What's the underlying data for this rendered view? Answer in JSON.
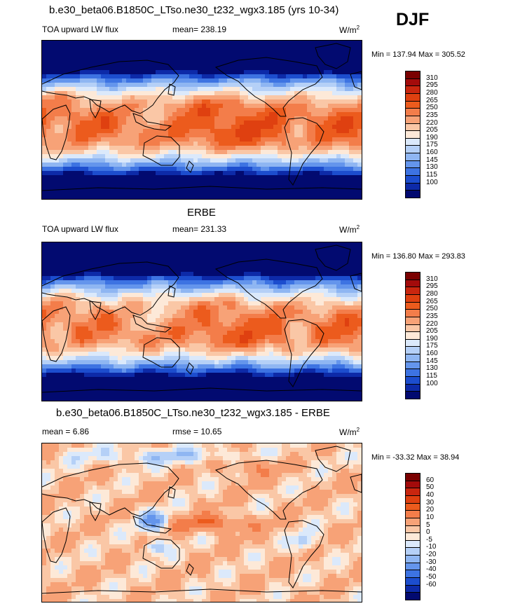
{
  "season_label": "DJF",
  "panels": [
    {
      "id": "model",
      "title": "b.e30_beta06.B1850C_LTso.ne30_t232_wgx3.185 (yrs 10-34)",
      "variable": "TOA upward LW flux",
      "stat_text": "mean= 238.19",
      "units": "W/m",
      "units_sup": "2",
      "minmax": "Min = 137.94 Max = 305.52",
      "colorbar_labels": [
        "310",
        "295",
        "280",
        "265",
        "250",
        "235",
        "220",
        "205",
        "190",
        "175",
        "160",
        "145",
        "130",
        "115",
        "100"
      ],
      "colors": [
        "#7a0000",
        "#a30b0b",
        "#c9260f",
        "#df4010",
        "#ec5b1d",
        "#f37d4a",
        "#f7a277",
        "#fac7a6",
        "#fde9d8",
        "#dbe9fb",
        "#b5d0f7",
        "#8fb6f2",
        "#6495ec",
        "#3d73e2",
        "#1c4dce",
        "#0d2aa8",
        "#020a70"
      ]
    },
    {
      "id": "obs",
      "title": "ERBE",
      "variable": "TOA upward LW flux",
      "stat_text": "mean= 231.33",
      "units": "W/m",
      "units_sup": "2",
      "minmax": "Min = 136.80 Max = 293.83",
      "colorbar_labels": [
        "310",
        "295",
        "280",
        "265",
        "250",
        "235",
        "220",
        "205",
        "190",
        "175",
        "160",
        "145",
        "130",
        "115",
        "100"
      ],
      "colors": [
        "#7a0000",
        "#a30b0b",
        "#c9260f",
        "#df4010",
        "#ec5b1d",
        "#f37d4a",
        "#f7a277",
        "#fac7a6",
        "#fde9d8",
        "#dbe9fb",
        "#b5d0f7",
        "#8fb6f2",
        "#6495ec",
        "#3d73e2",
        "#1c4dce",
        "#0d2aa8",
        "#020a70"
      ]
    },
    {
      "id": "diff",
      "title": "b.e30_beta06.B1850C_LTso.ne30_t232_wgx3.185 - ERBE",
      "variable": "mean =   6.86",
      "stat_text": "rmse =  10.65",
      "units": "W/m",
      "units_sup": "2",
      "minmax": "Min = -33.32 Max =  38.94",
      "colorbar_labels": [
        "60",
        "50",
        "40",
        "30",
        "20",
        "10",
        "5",
        "0",
        "-5",
        "-10",
        "-20",
        "-30",
        "-40",
        "-50",
        "-60"
      ],
      "colors": [
        "#7a0000",
        "#a30b0b",
        "#c9260f",
        "#df4010",
        "#ec5b1d",
        "#f37d4a",
        "#f7a277",
        "#fac7a6",
        "#fde9d8",
        "#dbe9fb",
        "#b5d0f7",
        "#8fb6f2",
        "#6495ec",
        "#3d73e2",
        "#1c4dce",
        "#0d2aa8",
        "#020a70"
      ]
    }
  ],
  "chart_data": [
    {
      "type": "heatmap",
      "title": "b.e30_beta06.B1850C_LTso.ne30_t232_wgx3.185 (yrs 10-34)",
      "variable": "TOA upward LW flux",
      "units": "W/m2",
      "season": "DJF",
      "mean": 238.19,
      "min": 137.94,
      "max": 305.52,
      "contour_levels": [
        100,
        115,
        130,
        145,
        160,
        175,
        190,
        205,
        220,
        235,
        250,
        265,
        280,
        295,
        310
      ],
      "field": "model",
      "x": "longitude (global map, Pacific-centered)",
      "y": "latitude"
    },
    {
      "type": "heatmap",
      "title": "ERBE",
      "variable": "TOA upward LW flux",
      "units": "W/m2",
      "season": "DJF",
      "mean": 231.33,
      "min": 136.8,
      "max": 293.83,
      "contour_levels": [
        100,
        115,
        130,
        145,
        160,
        175,
        190,
        205,
        220,
        235,
        250,
        265,
        280,
        295,
        310
      ],
      "field": "obs",
      "x": "longitude (global map, Pacific-centered)",
      "y": "latitude"
    },
    {
      "type": "heatmap",
      "title": "b.e30_beta06.B1850C_LTso.ne30_t232_wgx3.185 - ERBE",
      "units": "W/m2",
      "season": "DJF",
      "mean": 6.86,
      "rmse": 10.65,
      "min": -33.32,
      "max": 38.94,
      "contour_levels": [
        -60,
        -50,
        -40,
        -30,
        -20,
        -10,
        -5,
        0,
        5,
        10,
        20,
        30,
        40,
        50,
        60
      ],
      "field": "diff",
      "x": "longitude (global map, Pacific-centered)",
      "y": "latitude"
    }
  ]
}
